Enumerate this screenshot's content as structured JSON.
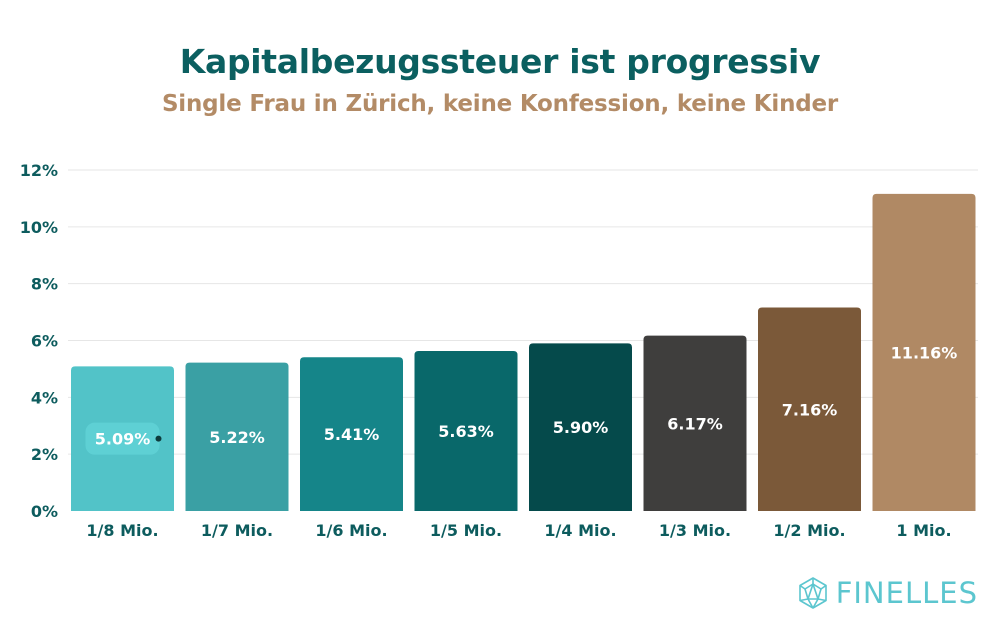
{
  "chart_data": {
    "type": "bar",
    "title": "Kapitalbezugssteuer ist progressiv",
    "subtitle": "Single Frau in Zürich, keine Konfession, keine Kinder",
    "xlabel": "",
    "ylabel": "",
    "ylim": [
      0,
      12
    ],
    "yticks": [
      0,
      2,
      4,
      6,
      8,
      10,
      12
    ],
    "ytick_labels": [
      "0%",
      "2%",
      "4%",
      "6%",
      "8%",
      "10%",
      "12%"
    ],
    "grid": true,
    "categories": [
      "1/8 Mio.",
      "1/7 Mio.",
      "1/6 Mio.",
      "1/5 Mio.",
      "1/4 Mio.",
      "1/3 Mio.",
      "1/2 Mio.",
      "1 Mio."
    ],
    "values": [
      5.09,
      5.22,
      5.41,
      5.63,
      5.9,
      6.17,
      7.16,
      11.16
    ],
    "data_labels": [
      "5.09%",
      "5.22%",
      "5.41%",
      "5.63%",
      "5.90%",
      "6.17%",
      "7.16%",
      "11.16%"
    ],
    "colors": [
      "#52c3c8",
      "#3aa0a4",
      "#158589",
      "#09686a",
      "#054a4b",
      "#3f3e3d",
      "#7b5939",
      "#b08964"
    ]
  },
  "colors": {
    "title": "#0b5f60",
    "subtitle": "#b38b66",
    "axis_text": "#0d5c5e",
    "grid": "#e6e6e6",
    "logo": "#5cc6cf"
  },
  "logo": {
    "text": "FINELLES",
    "icon": "geodesic-sphere-icon"
  }
}
